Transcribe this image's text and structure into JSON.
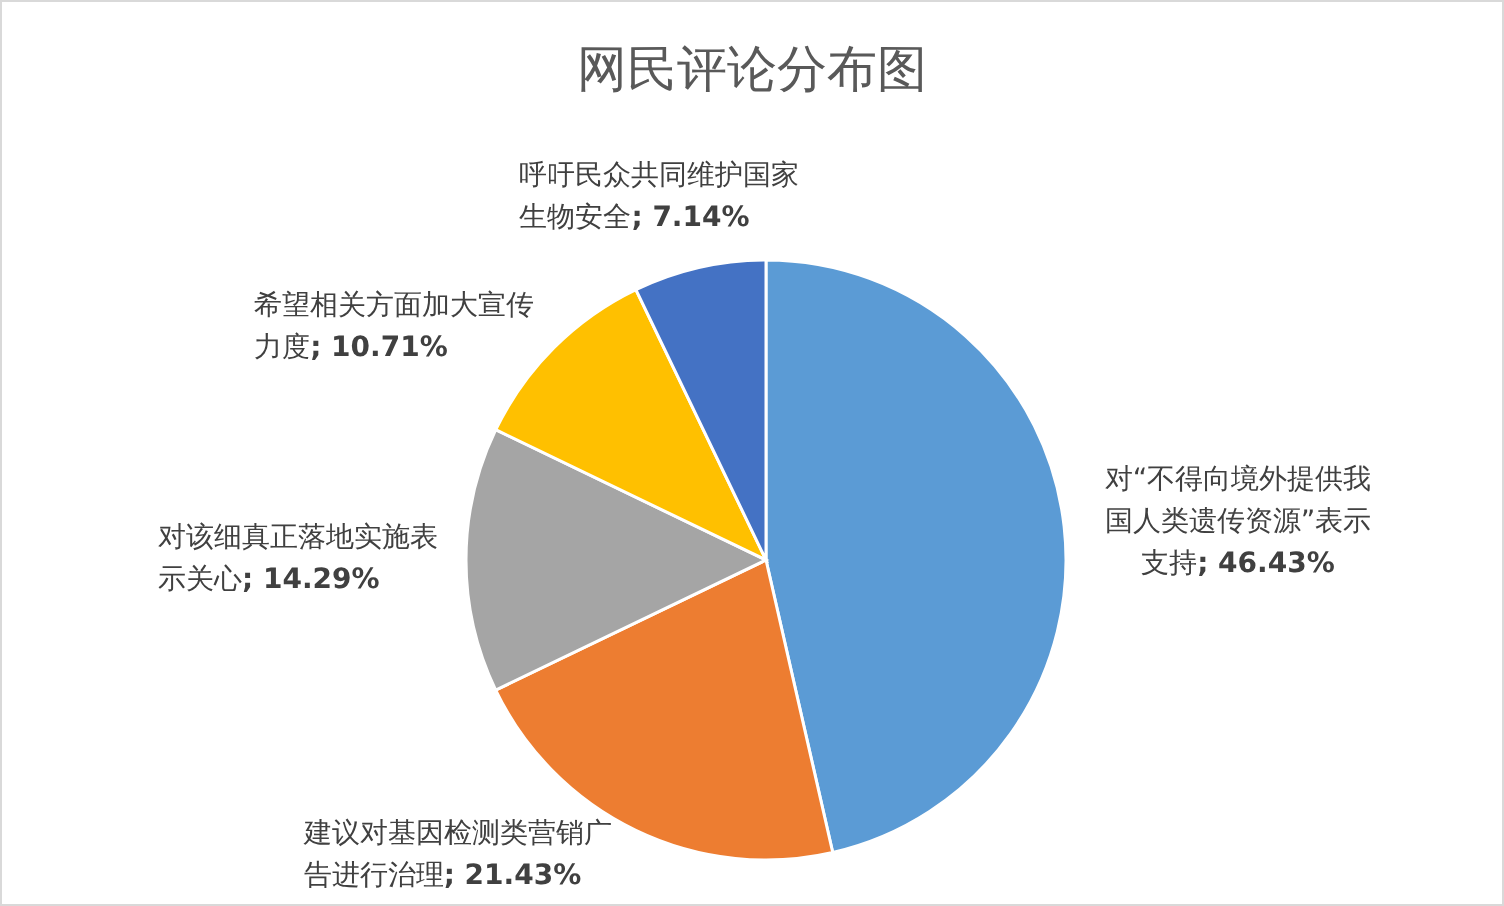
{
  "chart_data": {
    "type": "pie",
    "title": "网民评论分布图",
    "categories": [
      "对“不得向境外提供我国人类遗传资源”表示支持",
      "建议对基因检测类营销广告进行治理",
      "对该细真正落地实施表示关心",
      "希望相关方面加大宣传力度",
      "呼吁民众共同维护国家生物安全"
    ],
    "values": [
      46.43,
      21.43,
      14.29,
      10.71,
      7.14
    ],
    "value_labels": [
      "; 46.43%",
      "; 21.43%",
      "; 14.29%",
      "; 10.71%",
      "; 7.14%"
    ],
    "colors": [
      "#5b9bd5",
      "#ed7d31",
      "#a5a5a5",
      "#ffc000",
      "#4472c4"
    ]
  }
}
